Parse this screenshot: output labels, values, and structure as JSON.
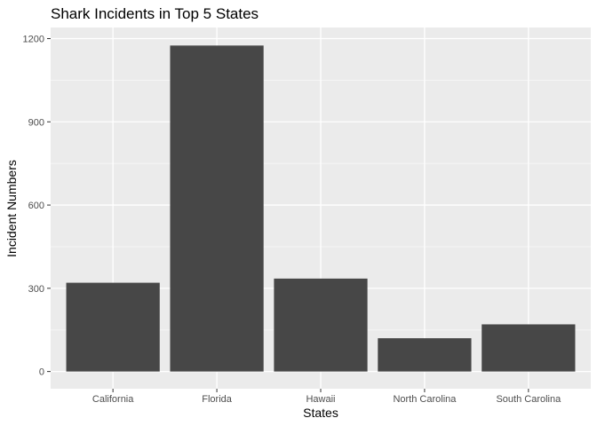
{
  "chart_data": {
    "type": "bar",
    "title": "Shark Incidents in Top 5 States",
    "xlabel": "States",
    "ylabel": "Incident Numbers",
    "categories": [
      "California",
      "Florida",
      "Hawaii",
      "North Carolina",
      "South Carolina"
    ],
    "values": [
      320,
      1175,
      335,
      120,
      170
    ],
    "ylim": [
      -62,
      1240
    ],
    "yticks": [
      0,
      300,
      600,
      900,
      1200
    ],
    "grid": true,
    "legend": "none",
    "colors": {
      "panel": "#ebebeb",
      "bar": "#474747",
      "grid_major": "#ffffff",
      "grid_minor": "#f5f5f5",
      "tick": "#333333"
    }
  }
}
